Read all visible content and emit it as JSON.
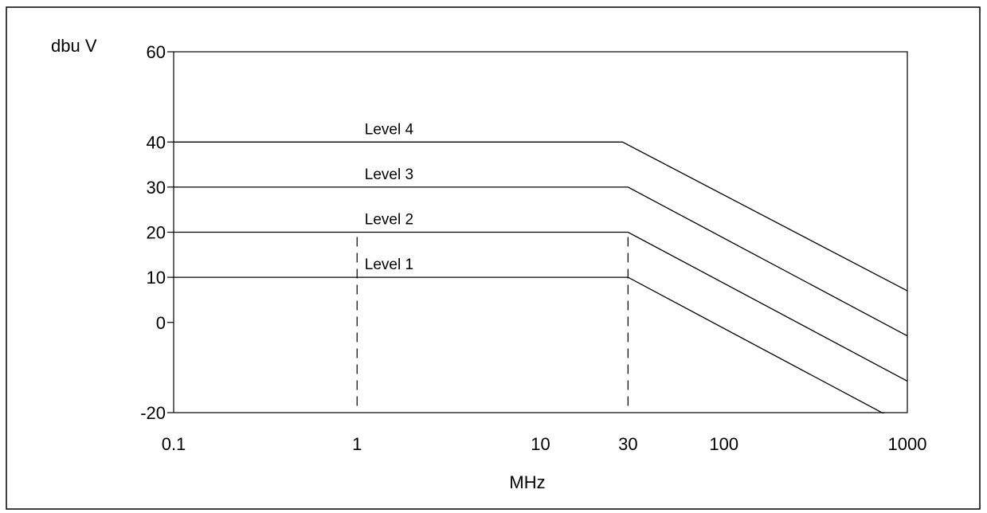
{
  "chart_data": {
    "type": "line",
    "title": "",
    "xlabel": "MHz",
    "ylabel": "dbu V",
    "x_scale": "log",
    "xlim": [
      0.1,
      1000
    ],
    "ylim": [
      -20,
      60
    ],
    "x_ticks": [
      {
        "value": 0.1,
        "label": "0.1"
      },
      {
        "value": 1,
        "label": "1"
      },
      {
        "value": 10,
        "label": "10"
      },
      {
        "value": 30,
        "label": "30"
      },
      {
        "value": 100,
        "label": "100"
      },
      {
        "value": 1000,
        "label": "1000"
      }
    ],
    "y_ticks": [
      {
        "value": 60,
        "label": "60"
      },
      {
        "value": 40,
        "label": "40"
      },
      {
        "value": 30,
        "label": "30"
      },
      {
        "value": 20,
        "label": "20"
      },
      {
        "value": 10,
        "label": "10"
      },
      {
        "value": 0,
        "label": "0"
      },
      {
        "value": -20,
        "label": "-20"
      }
    ],
    "grid": false,
    "legend": "labels above lines",
    "series": [
      {
        "name": "Level 4",
        "x": [
          0.1,
          28,
          1000
        ],
        "y": [
          40,
          40,
          7
        ]
      },
      {
        "name": "Level 3",
        "x": [
          0.1,
          30,
          1000
        ],
        "y": [
          30,
          30,
          -3
        ]
      },
      {
        "name": "Level 2",
        "x": [
          0.1,
          30,
          1000
        ],
        "y": [
          20,
          20,
          -13
        ]
      },
      {
        "name": "Level 1",
        "x": [
          0.1,
          30,
          1000
        ],
        "y": [
          10,
          10,
          -23
        ]
      }
    ],
    "vertical_markers": [
      1,
      30
    ]
  }
}
